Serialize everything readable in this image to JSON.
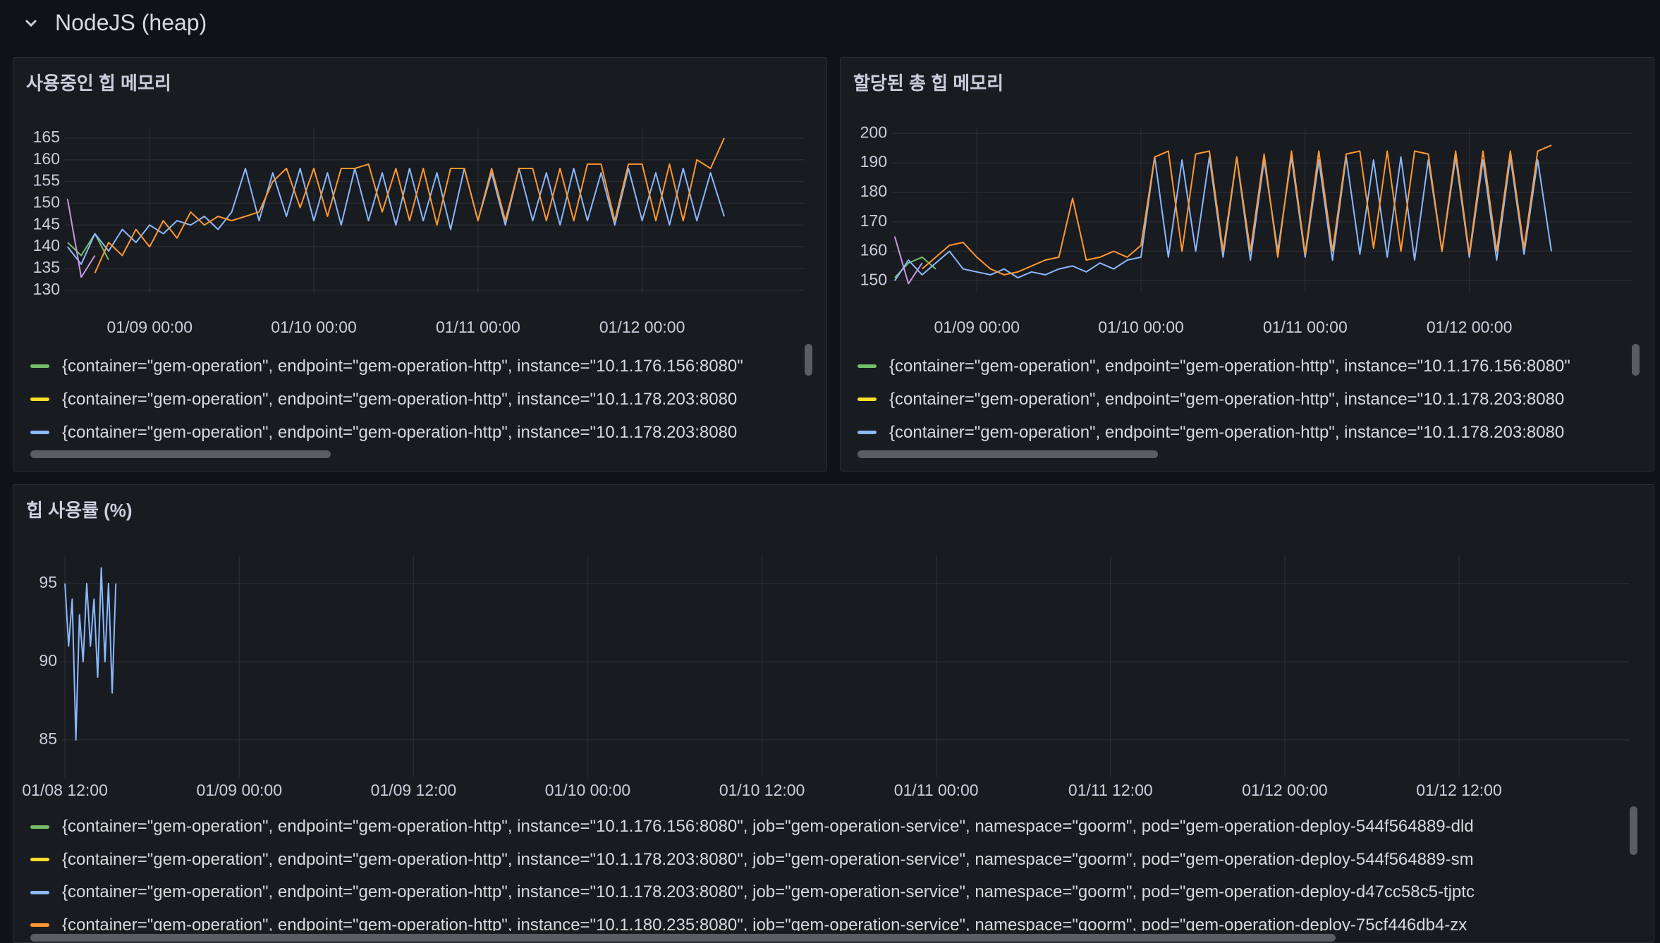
{
  "header": {
    "title": "NodeJS (heap)"
  },
  "chart_data": [
    {
      "type": "line",
      "title": "사용중인 힙 메모리",
      "x": [
        "01/08 12:00",
        "01/08 14:00",
        "01/08 16:00",
        "01/08 18:00",
        "01/08 20:00",
        "01/08 22:00",
        "01/09 00:00",
        "01/09 02:00",
        "01/09 04:00",
        "01/09 06:00",
        "01/09 08:00",
        "01/09 10:00",
        "01/09 12:00",
        "01/09 14:00",
        "01/09 16:00",
        "01/09 18:00",
        "01/09 20:00",
        "01/09 22:00",
        "01/10 00:00",
        "01/10 02:00",
        "01/10 04:00",
        "01/10 06:00",
        "01/10 08:00",
        "01/10 10:00",
        "01/10 12:00",
        "01/10 14:00",
        "01/10 16:00",
        "01/10 18:00",
        "01/10 20:00",
        "01/10 22:00",
        "01/11 00:00",
        "01/11 02:00",
        "01/11 04:00",
        "01/11 06:00",
        "01/11 08:00",
        "01/11 10:00",
        "01/11 12:00",
        "01/11 14:00",
        "01/11 16:00",
        "01/11 18:00",
        "01/11 20:00",
        "01/11 22:00",
        "01/12 00:00",
        "01/12 02:00",
        "01/12 04:00",
        "01/12 06:00",
        "01/12 08:00",
        "01/12 10:00",
        "01/12 12:00"
      ],
      "xlim": [
        "01/08 11:30",
        "01/12 23:45"
      ],
      "xticks": [
        "01/09 00:00",
        "01/10 00:00",
        "01/11 00:00",
        "01/12 00:00"
      ],
      "ylim": [
        129.5,
        167.4
      ],
      "yticks": [
        130,
        135,
        140,
        145,
        150,
        155,
        160,
        165
      ],
      "grid": true,
      "series": [
        {
          "name": "{container=\"gem-operation\", endpoint=\"gem-operation-http\", instance=\"10.1.176.156:8080\"",
          "color": "#73bf69",
          "values": [
            141,
            138,
            143,
            137,
            null,
            null,
            null,
            null,
            null,
            null,
            null,
            null,
            null,
            null,
            null,
            null,
            null,
            null,
            null,
            null,
            null,
            null,
            null,
            null,
            null,
            null,
            null,
            null,
            null,
            null,
            null,
            null,
            null,
            null,
            null,
            null,
            null,
            null,
            null,
            null,
            null,
            null,
            null,
            null,
            null,
            null,
            null,
            null,
            null
          ]
        },
        {
          "name": "{container=\"gem-operation\", endpoint=\"gem-operation-http\", instance=\"10.1.178.203:8080",
          "color": "#fade2a",
          "values": [
            null,
            null,
            null,
            null,
            null,
            null,
            null,
            null,
            null,
            null,
            null,
            null,
            null,
            null,
            null,
            null,
            null,
            null,
            null,
            null,
            null,
            null,
            null,
            null,
            null,
            null,
            null,
            null,
            null,
            null,
            null,
            null,
            null,
            null,
            null,
            null,
            null,
            null,
            null,
            null,
            null,
            null,
            null,
            null,
            null,
            null,
            null,
            null,
            null
          ]
        },
        {
          "name": "{container=\"gem-operation\", endpoint=\"gem-operation-http\", instance=\"10.1.178.203:8080",
          "color": "#8ab8ff",
          "values": [
            140,
            136,
            143,
            139,
            144,
            141,
            145,
            143,
            146,
            145,
            147,
            144,
            148,
            158,
            146,
            157,
            147,
            158,
            146,
            157,
            145,
            158,
            146,
            157,
            145,
            158,
            146,
            157,
            144,
            158,
            146,
            157,
            145,
            158,
            146,
            157,
            145,
            158,
            146,
            157,
            145,
            158,
            146,
            157,
            145,
            158,
            146,
            157,
            147
          ]
        },
        {
          "color": "#ff9830",
          "values": [
            null,
            null,
            134,
            141,
            138,
            144,
            140,
            146,
            142,
            148,
            145,
            147,
            146,
            147,
            148,
            155,
            158,
            149,
            158,
            147,
            158,
            158,
            159,
            148,
            158,
            146,
            158,
            145,
            158,
            158,
            146,
            158,
            146,
            158,
            158,
            146,
            158,
            146,
            159,
            159,
            146,
            159,
            159,
            146,
            159,
            146,
            160,
            158,
            165
          ]
        },
        {
          "color": "#ca95e5",
          "values": [
            151,
            133,
            138,
            null,
            null,
            null,
            null,
            null,
            null,
            null,
            null,
            null,
            null,
            null,
            null,
            null,
            null,
            null,
            null,
            null,
            null,
            null,
            null,
            null,
            null,
            null,
            null,
            null,
            null,
            null,
            null,
            null,
            null,
            null,
            null,
            null,
            null,
            null,
            null,
            null,
            null,
            null,
            null,
            null,
            null,
            null,
            null,
            null,
            null
          ]
        }
      ]
    },
    {
      "type": "line",
      "title": "할당된 총 힙 메모리",
      "x": [
        "01/08 12:00",
        "01/08 14:00",
        "01/08 16:00",
        "01/08 18:00",
        "01/08 20:00",
        "01/08 22:00",
        "01/09 00:00",
        "01/09 02:00",
        "01/09 04:00",
        "01/09 06:00",
        "01/09 08:00",
        "01/09 10:00",
        "01/09 12:00",
        "01/09 14:00",
        "01/09 16:00",
        "01/09 18:00",
        "01/09 20:00",
        "01/09 22:00",
        "01/10 00:00",
        "01/10 02:00",
        "01/10 04:00",
        "01/10 06:00",
        "01/10 08:00",
        "01/10 10:00",
        "01/10 12:00",
        "01/10 14:00",
        "01/10 16:00",
        "01/10 18:00",
        "01/10 20:00",
        "01/10 22:00",
        "01/11 00:00",
        "01/11 02:00",
        "01/11 04:00",
        "01/11 06:00",
        "01/11 08:00",
        "01/11 10:00",
        "01/11 12:00",
        "01/11 14:00",
        "01/11 16:00",
        "01/11 18:00",
        "01/11 20:00",
        "01/11 22:00",
        "01/12 00:00",
        "01/12 02:00",
        "01/12 04:00",
        "01/12 06:00",
        "01/12 08:00",
        "01/12 10:00",
        "01/12 12:00"
      ],
      "xlim": [
        "01/08 11:30",
        "01/12 23:45"
      ],
      "xticks": [
        "01/09 00:00",
        "01/10 00:00",
        "01/11 00:00",
        "01/12 00:00"
      ],
      "ylim": [
        146,
        202
      ],
      "yticks": [
        150,
        160,
        170,
        180,
        190,
        200
      ],
      "grid": true,
      "series": [
        {
          "name": "{container=\"gem-operation\", endpoint=\"gem-operation-http\", instance=\"10.1.176.156:8080\"",
          "color": "#73bf69",
          "values": [
            151,
            156,
            158,
            154,
            null,
            null,
            null,
            null,
            null,
            null,
            null,
            null,
            null,
            null,
            null,
            null,
            null,
            null,
            null,
            null,
            null,
            null,
            null,
            null,
            null,
            null,
            null,
            null,
            null,
            null,
            null,
            null,
            null,
            null,
            null,
            null,
            null,
            null,
            null,
            null,
            null,
            null,
            null,
            null,
            null,
            null,
            null,
            null,
            null
          ]
        },
        {
          "name": "{container=\"gem-operation\", endpoint=\"gem-operation-http\", instance=\"10.1.178.203:8080",
          "color": "#fade2a",
          "values": [
            null,
            null,
            null,
            null,
            null,
            null,
            null,
            null,
            null,
            null,
            null,
            null,
            null,
            null,
            null,
            null,
            null,
            null,
            null,
            null,
            null,
            null,
            null,
            null,
            null,
            null,
            null,
            null,
            null,
            null,
            null,
            null,
            null,
            null,
            null,
            null,
            null,
            null,
            null,
            null,
            null,
            null,
            null,
            null,
            null,
            null,
            null,
            null,
            null
          ]
        },
        {
          "name": "{container=\"gem-operation\", endpoint=\"gem-operation-http\", instance=\"10.1.178.203:8080",
          "color": "#8ab8ff",
          "values": [
            150,
            157,
            152,
            156,
            160,
            154,
            153,
            152,
            154,
            151,
            153,
            152,
            154,
            155,
            153,
            156,
            154,
            157,
            158,
            192,
            158,
            191,
            160,
            192,
            158,
            192,
            157,
            191,
            160,
            192,
            158,
            191,
            157,
            192,
            159,
            191,
            158,
            192,
            157,
            191,
            160,
            192,
            158,
            191,
            157,
            192,
            159,
            191,
            160
          ]
        },
        {
          "color": "#ff9830",
          "values": [
            null,
            null,
            154,
            158,
            162,
            163,
            158,
            154,
            152,
            153,
            155,
            157,
            158,
            178,
            157,
            158,
            160,
            158,
            162,
            192,
            194,
            160,
            193,
            194,
            160,
            192,
            160,
            193,
            158,
            194,
            159,
            194,
            160,
            193,
            194,
            161,
            194,
            160,
            194,
            193,
            160,
            194,
            159,
            194,
            160,
            194,
            161,
            194,
            196
          ]
        },
        {
          "color": "#ca95e5",
          "values": [
            165,
            149,
            156,
            null,
            null,
            null,
            null,
            null,
            null,
            null,
            null,
            null,
            null,
            null,
            null,
            null,
            null,
            null,
            null,
            null,
            null,
            null,
            null,
            null,
            null,
            null,
            null,
            null,
            null,
            null,
            null,
            null,
            null,
            null,
            null,
            null,
            null,
            null,
            null,
            null,
            null,
            null,
            null,
            null,
            null,
            null,
            null,
            null,
            null
          ]
        }
      ]
    },
    {
      "type": "line",
      "title": "힙 사용률 (%)",
      "x": [
        "01/08 12:00",
        "01/08 12:15",
        "01/08 12:30",
        "01/08 12:45",
        "01/08 13:00",
        "01/08 13:15",
        "01/08 13:30",
        "01/08 13:45",
        "01/08 14:00",
        "01/08 14:15",
        "01/08 14:30",
        "01/08 14:45",
        "01/08 15:00",
        "01/08 15:15",
        "01/08 15:30"
      ],
      "xlim": [
        "01/08 11:45",
        "01/12 23:45"
      ],
      "xticks": [
        "01/08 12:00",
        "01/09 00:00",
        "01/09 12:00",
        "01/10 00:00",
        "01/10 12:00",
        "01/11 00:00",
        "01/11 12:00",
        "01/12 00:00",
        "01/12 12:00"
      ],
      "ylim": [
        82.6,
        96.8
      ],
      "yticks": [
        85,
        90,
        95
      ],
      "grid": true,
      "series": [
        {
          "name": "{container=\"gem-operation\", endpoint=\"gem-operation-http\", instance=\"10.1.176.156:8080\", job=\"gem-operation-service\", namespace=\"goorm\", pod=\"gem-operation-deploy-544f564889-dld",
          "color": "#73bf69",
          "values": [
            null,
            null,
            null,
            null,
            null,
            null,
            null,
            null,
            null,
            null,
            null,
            null,
            null,
            null,
            null
          ]
        },
        {
          "name": "{container=\"gem-operation\", endpoint=\"gem-operation-http\", instance=\"10.1.178.203:8080\", job=\"gem-operation-service\", namespace=\"goorm\", pod=\"gem-operation-deploy-544f564889-sm",
          "color": "#fade2a",
          "values": [
            null,
            null,
            null,
            null,
            null,
            null,
            null,
            null,
            null,
            null,
            null,
            null,
            null,
            null,
            null
          ]
        },
        {
          "name": "{container=\"gem-operation\", endpoint=\"gem-operation-http\", instance=\"10.1.178.203:8080\", job=\"gem-operation-service\", namespace=\"goorm\", pod=\"gem-operation-deploy-d47cc58c5-tjptc",
          "color": "#8ab8ff",
          "values": [
            95,
            91,
            94,
            85,
            93,
            90,
            95,
            91,
            94,
            89,
            96,
            90,
            95,
            88,
            95
          ]
        },
        {
          "name": "{container=\"gem-operation\", endpoint=\"gem-operation-http\", instance=\"10.1.180.235:8080\", job=\"gem-operation-service\", namespace=\"goorm\", pod=\"gem-operation-deploy-75cf446db4-zx",
          "color": "#ff9830",
          "values": [
            null,
            null,
            null,
            null,
            null,
            null,
            null,
            null,
            null,
            null,
            null,
            null,
            null,
            null,
            null
          ]
        }
      ]
    }
  ]
}
